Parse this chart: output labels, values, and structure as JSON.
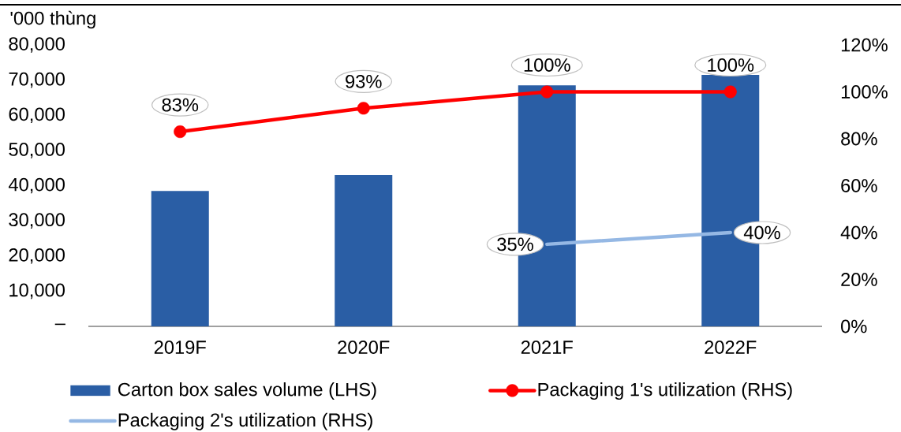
{
  "chart_data": {
    "type": "bar",
    "ylabel": "'000 thùng",
    "categories": [
      "2019F",
      "2020F",
      "2021F",
      "2022F"
    ],
    "series": [
      {
        "name": "Carton box sales volume (LHS)",
        "color": "#2a5ea5",
        "values": [
          38500,
          43000,
          68500,
          71500
        ]
      },
      {
        "name": "Packaging 1's utilization (RHS)",
        "type": "line",
        "axis": "y2",
        "color": "#ff0000",
        "marker": "circle",
        "values": [
          83,
          93,
          100,
          100
        ],
        "value_labels": [
          "83%",
          "93%",
          "100%",
          "100%"
        ]
      },
      {
        "name": "Packaging 2's utilization (RHS)",
        "type": "line",
        "axis": "y2",
        "color": "#95b8e4",
        "values": [
          null,
          null,
          35,
          40
        ],
        "value_labels": [
          null,
          null,
          "35%",
          "40%"
        ]
      }
    ],
    "ylim": [
      0,
      80000
    ],
    "yticks": [
      {
        "value": 0,
        "label": "–"
      },
      {
        "value": 10000,
        "label": "10,000"
      },
      {
        "value": 20000,
        "label": "20,000"
      },
      {
        "value": 30000,
        "label": "30,000"
      },
      {
        "value": 40000,
        "label": "40,000"
      },
      {
        "value": 50000,
        "label": "50,000"
      },
      {
        "value": 60000,
        "label": "60,000"
      },
      {
        "value": 70000,
        "label": "70,000"
      },
      {
        "value": 80000,
        "label": "80,000"
      }
    ],
    "y2lim": [
      0,
      120
    ],
    "y2ticks": [
      {
        "value": 0,
        "label": "0%"
      },
      {
        "value": 20,
        "label": "20%"
      },
      {
        "value": 40,
        "label": "40%"
      },
      {
        "value": 60,
        "label": "60%"
      },
      {
        "value": 80,
        "label": "80%"
      },
      {
        "value": 100,
        "label": "100%"
      },
      {
        "value": 120,
        "label": "120%"
      }
    ],
    "legend": "bottom"
  }
}
